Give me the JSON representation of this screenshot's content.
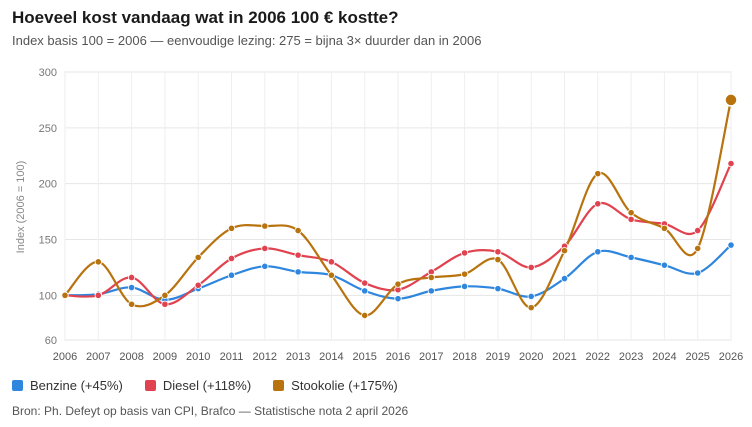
{
  "chart_data": {
    "type": "line",
    "title": "Hoeveel kost vandaag wat in 2006 100 € kostte?",
    "subtitle": "Index basis 100 = 2006 — eenvoudige lezing: 275 = bijna 3× duurder dan in 2006",
    "xlabel": "",
    "ylabel": "Index (2006 = 100)",
    "ylim": [
      60,
      300
    ],
    "yticks": [
      "300",
      "250",
      "200",
      "150",
      "100",
      "60"
    ],
    "x": [
      "2006",
      "2007",
      "2008",
      "2009",
      "2010",
      "2011",
      "2012",
      "2013",
      "2014",
      "2015",
      "2016",
      "2017",
      "2018",
      "2019",
      "2020",
      "2021",
      "2022",
      "2023",
      "2024",
      "2025",
      "2026"
    ],
    "series": [
      {
        "name": "Benzine",
        "legend": "Benzine (+45%)",
        "color": "#2e86de",
        "values": [
          100,
          101,
          107,
          96,
          106,
          118,
          126,
          121,
          118,
          104,
          97,
          104,
          108,
          106,
          99,
          115,
          139,
          134,
          127,
          120,
          145
        ]
      },
      {
        "name": "Diesel",
        "legend": "Diesel (+118%)",
        "color": "#e0434f",
        "values": [
          100,
          100,
          116,
          92,
          109,
          133,
          142,
          136,
          130,
          111,
          105,
          121,
          138,
          139,
          125,
          144,
          182,
          168,
          164,
          158,
          218
        ]
      },
      {
        "name": "Stookolie",
        "legend": "Stookolie (+175%)",
        "color": "#b8730f",
        "values": [
          100,
          130,
          92,
          100,
          134,
          160,
          162,
          158,
          118,
          82,
          110,
          116,
          119,
          132,
          89,
          140,
          209,
          174,
          160,
          142,
          275
        ]
      }
    ]
  },
  "source": "Bron: Ph. Defeyt op basis van CPI, Brafco — Statistische nota 2 april 2026"
}
